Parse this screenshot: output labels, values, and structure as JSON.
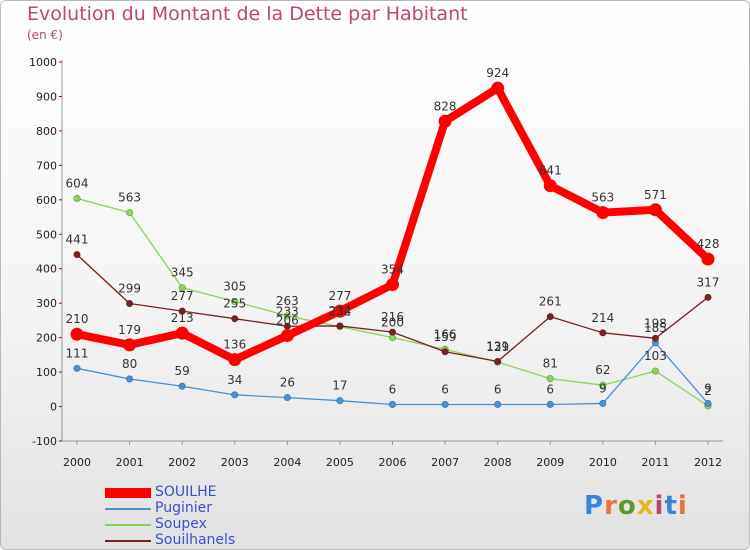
{
  "header": {
    "title": "Evolution du Montant de la Dette par Habitant",
    "unit": "(en €)"
  },
  "logo": {
    "text": "Proxiti",
    "colors": [
      "#3a86d6",
      "#e8733a",
      "#5a9a2a",
      "#e8b520",
      "#c1446e",
      "#3a86d6",
      "#e8733a"
    ]
  },
  "chart_data": {
    "type": "line",
    "x": [
      "2000",
      "2001",
      "2002",
      "2003",
      "2004",
      "2005",
      "2006",
      "2007",
      "2008",
      "2009",
      "2010",
      "2011",
      "2012"
    ],
    "ylim": [
      -100,
      1000
    ],
    "yticks": [
      -100,
      0,
      100,
      200,
      300,
      400,
      500,
      600,
      700,
      800,
      900,
      1000
    ],
    "grid": false,
    "legend_position": "bottom-left",
    "series": [
      {
        "name": "SOUILHE",
        "color": "#ff0000",
        "values": [
          210,
          179,
          213,
          136,
          206,
          277,
          354,
          828,
          924,
          641,
          563,
          571,
          428
        ]
      },
      {
        "name": "Puginier",
        "color": "#4a90d6",
        "values": [
          111,
          80,
          59,
          34,
          26,
          17,
          6,
          6,
          6,
          6,
          9,
          185,
          9
        ]
      },
      {
        "name": "Soupex",
        "color": "#88d65a",
        "values": [
          604,
          563,
          345,
          305,
          263,
          232,
          200,
          166,
          129,
          81,
          62,
          103,
          2
        ]
      },
      {
        "name": "Souilhanels",
        "color": "#7a2020",
        "values": [
          441,
          299,
          277,
          255,
          233,
          234,
          216,
          159,
          131,
          261,
          214,
          198,
          317
        ]
      }
    ]
  }
}
